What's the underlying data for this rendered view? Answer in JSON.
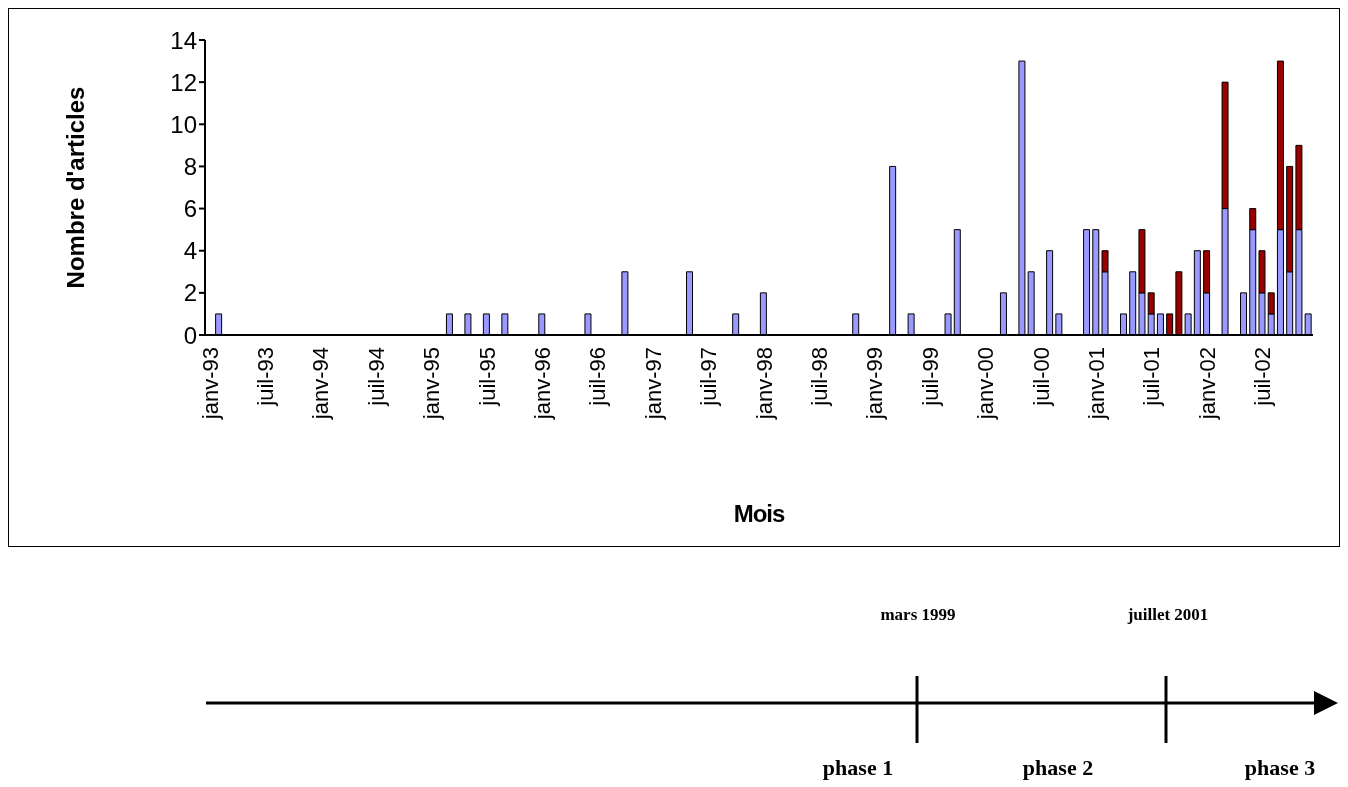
{
  "chart_data": {
    "type": "bar",
    "stacked": true,
    "ylabel": "Nombre d'articles",
    "xlabel": "Mois",
    "categories": [
      "janv-93",
      null,
      null,
      null,
      null,
      null,
      "juil-93",
      null,
      null,
      null,
      null,
      null,
      "janv-94",
      null,
      null,
      null,
      null,
      null,
      "juil-94",
      null,
      null,
      null,
      null,
      null,
      "janv-95",
      null,
      null,
      null,
      null,
      null,
      "juil-95",
      null,
      null,
      null,
      null,
      null,
      "janv-96",
      null,
      null,
      null,
      null,
      null,
      "juil-96",
      null,
      null,
      null,
      null,
      null,
      "janv-97",
      null,
      null,
      null,
      null,
      null,
      "juil-97",
      null,
      null,
      null,
      null,
      null,
      "janv-98",
      null,
      null,
      null,
      null,
      null,
      "juil-98",
      null,
      null,
      null,
      null,
      null,
      "janv-99",
      null,
      null,
      null,
      null,
      null,
      "juil-99",
      null,
      null,
      null,
      null,
      null,
      "janv-00",
      null,
      null,
      null,
      null,
      null,
      "juil-00",
      null,
      null,
      null,
      null,
      null,
      "janv-01",
      null,
      null,
      null,
      null,
      null,
      "juil-01",
      null,
      null,
      null,
      null,
      null,
      "janv-02",
      null,
      null,
      null,
      null,
      null,
      "juil-02",
      null,
      null,
      null,
      null,
      null
    ],
    "series": [
      {
        "color": "#9999ff",
        "values": [
          0,
          1,
          0,
          0,
          0,
          0,
          0,
          0,
          0,
          0,
          0,
          0,
          0,
          0,
          0,
          0,
          0,
          0,
          0,
          0,
          0,
          0,
          0,
          0,
          0,
          0,
          1,
          0,
          1,
          0,
          1,
          0,
          1,
          0,
          0,
          0,
          1,
          0,
          0,
          0,
          0,
          1,
          0,
          0,
          0,
          3,
          0,
          0,
          0,
          0,
          0,
          0,
          3,
          0,
          0,
          0,
          0,
          1,
          0,
          0,
          2,
          0,
          0,
          0,
          0,
          0,
          0,
          0,
          0,
          0,
          1,
          0,
          0,
          0,
          8,
          0,
          1,
          0,
          0,
          0,
          1,
          5,
          0,
          0,
          0,
          0,
          2,
          0,
          13,
          3,
          0,
          4,
          1,
          0,
          0,
          5,
          5,
          3,
          0,
          1,
          3,
          2,
          1,
          1,
          0,
          0,
          1,
          4,
          2,
          0,
          6,
          0,
          2,
          5,
          2,
          1,
          5,
          3,
          5,
          1
        ]
      },
      {
        "color": "#990000",
        "values": [
          0,
          0,
          0,
          0,
          0,
          0,
          0,
          0,
          0,
          0,
          0,
          0,
          0,
          0,
          0,
          0,
          0,
          0,
          0,
          0,
          0,
          0,
          0,
          0,
          0,
          0,
          0,
          0,
          0,
          0,
          0,
          0,
          0,
          0,
          0,
          0,
          0,
          0,
          0,
          0,
          0,
          0,
          0,
          0,
          0,
          0,
          0,
          0,
          0,
          0,
          0,
          0,
          0,
          0,
          0,
          0,
          0,
          0,
          0,
          0,
          0,
          0,
          0,
          0,
          0,
          0,
          0,
          0,
          0,
          0,
          0,
          0,
          0,
          0,
          0,
          0,
          0,
          0,
          0,
          0,
          0,
          0,
          0,
          0,
          0,
          0,
          0,
          0,
          0,
          0,
          0,
          0,
          0,
          0,
          0,
          0,
          0,
          1,
          0,
          0,
          0,
          3,
          1,
          0,
          1,
          3,
          0,
          0,
          2,
          0,
          6,
          0,
          0,
          1,
          2,
          1,
          8,
          5,
          4,
          0
        ]
      }
    ],
    "ylim": [
      0,
      14
    ],
    "yticks": [
      0,
      2,
      4,
      6,
      8,
      10,
      12,
      14
    ],
    "grid": false,
    "legend": false,
    "annotations": [
      "mars 1999",
      "juillet 2001",
      "phase 1",
      "phase 2",
      "phase 3"
    ]
  }
}
